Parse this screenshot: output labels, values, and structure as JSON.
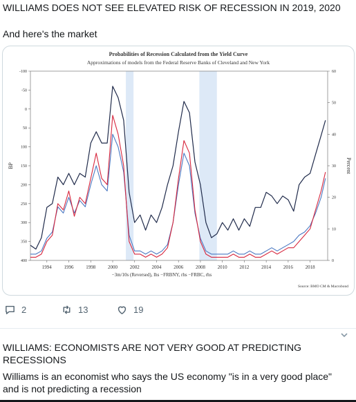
{
  "tweet1": {
    "headline": "WILLIAMS DOES NOT SEE ELEVATED RISK OF RECESSION IN 2019, 2020",
    "text": "And here's the market",
    "actions": {
      "replies": "2",
      "retweets": "13",
      "likes": "19"
    }
  },
  "tweet2": {
    "headline": "WILLIAMS: ECONOMISTS ARE NOT VERY GOOD AT PREDICTING RECESSIONS",
    "text": "Williams is an economist who says the US economy \"is in a very good place\" and is not predicting a recession"
  },
  "icons": {
    "reply": "reply-icon",
    "retweet": "retweet-icon",
    "like": "heart-icon",
    "more": "chevron-down-icon"
  },
  "colors": {
    "navy": "#1f2a4a",
    "red": "#d7263d",
    "blue": "#4a78c2",
    "recession": "#dde9f7"
  },
  "chart_data": {
    "type": "line",
    "title": "Probabilities of Recession Calculated from the Yield Curve",
    "subtitle": "Approximations of models from the Federal Reserve Banks of Cleveland and New York",
    "ylabel": "BP",
    "y2label": "Percent",
    "legend": "−3m/10s (Reversed), lhs −FRBNY, rhs −FRBC, rhs",
    "source": "Source: BMO CM & Macrobond",
    "ylim": [
      400,
      -100
    ],
    "y2lim": [
      0,
      60
    ],
    "yticks": [
      "-100",
      "-50",
      "0",
      "50",
      "100",
      "150",
      "200",
      "250",
      "300",
      "350",
      "400"
    ],
    "y2ticks": [
      "0",
      "10",
      "20",
      "30",
      "40",
      "50",
      "60"
    ],
    "xlim": [
      1992.5,
      2019.6
    ],
    "xticks": [
      "1994",
      "1996",
      "1998",
      "2000",
      "2002",
      "2004",
      "2006",
      "2008",
      "2010",
      "2012",
      "2014",
      "2016",
      "2018"
    ],
    "recessions": [
      [
        2001.2,
        2001.9
      ],
      [
        2007.9,
        2009.5
      ]
    ],
    "series": [
      {
        "name": "3m/10s (Reversed)",
        "axis": "left",
        "color": "#1f2a4a",
        "x": [
          1992.5,
          1993,
          1993.5,
          1994,
          1994.5,
          1995,
          1995.5,
          1996,
          1996.5,
          1997,
          1997.5,
          1998,
          1998.5,
          1999,
          1999.5,
          2000,
          2000.5,
          2001,
          2001.5,
          2002,
          2002.5,
          2003,
          2003.5,
          2004,
          2004.5,
          2005,
          2005.5,
          2006,
          2006.5,
          2007,
          2007.5,
          2008,
          2008.5,
          2009,
          2009.5,
          2010,
          2010.5,
          2011,
          2011.5,
          2012,
          2012.5,
          2013,
          2013.5,
          2014,
          2014.5,
          2015,
          2015.5,
          2016,
          2016.5,
          2017,
          2017.5,
          2018,
          2018.5,
          2019,
          2019.4
        ],
        "y": [
          360,
          370,
          340,
          260,
          250,
          180,
          200,
          170,
          200,
          170,
          180,
          90,
          60,
          90,
          90,
          -60,
          -30,
          30,
          220,
          300,
          280,
          320,
          280,
          300,
          260,
          200,
          150,
          60,
          -20,
          10,
          140,
          200,
          300,
          340,
          330,
          300,
          320,
          290,
          320,
          290,
          310,
          260,
          260,
          220,
          230,
          250,
          230,
          240,
          270,
          200,
          180,
          170,
          120,
          70,
          30
        ]
      },
      {
        "name": "FRBNY",
        "axis": "right",
        "color": "#d7263d",
        "x": [
          1992.5,
          1993,
          1993.5,
          1994,
          1994.5,
          1995,
          1995.5,
          1996,
          1996.5,
          1997,
          1997.5,
          1998,
          1998.5,
          1999,
          1999.5,
          2000,
          2000.5,
          2001,
          2001.5,
          2002,
          2002.5,
          2003,
          2003.5,
          2004,
          2004.5,
          2005,
          2005.5,
          2006,
          2006.5,
          2007,
          2007.5,
          2008,
          2008.5,
          2009,
          2009.5,
          2010,
          2010.5,
          2011,
          2011.5,
          2012,
          2012.5,
          2013,
          2013.5,
          2014,
          2014.5,
          2015,
          2015.5,
          2016,
          2016.5,
          2017,
          2017.5,
          2018,
          2018.5,
          2019,
          2019.4
        ],
        "y": [
          1,
          1,
          2,
          6,
          8,
          18,
          16,
          22,
          14,
          20,
          18,
          26,
          34,
          26,
          24,
          46,
          40,
          30,
          6,
          2,
          2,
          1,
          2,
          1,
          2,
          4,
          12,
          26,
          38,
          34,
          16,
          6,
          2,
          1,
          1,
          1,
          1,
          2,
          1,
          1,
          2,
          1,
          1,
          2,
          3,
          2,
          3,
          4,
          4,
          6,
          8,
          10,
          16,
          22,
          28
        ]
      },
      {
        "name": "FRBC",
        "axis": "right",
        "color": "#4a78c2",
        "x": [
          1992.5,
          1993,
          1993.5,
          1994,
          1994.5,
          1995,
          1995.5,
          1996,
          1996.5,
          1997,
          1997.5,
          1998,
          1998.5,
          1999,
          1999.5,
          2000,
          2000.5,
          2001,
          2001.5,
          2002,
          2002.5,
          2003,
          2003.5,
          2004,
          2004.5,
          2005,
          2005.5,
          2006,
          2006.5,
          2007,
          2007.5,
          2008,
          2008.5,
          2009,
          2009.5,
          2010,
          2010.5,
          2011,
          2011.5,
          2012,
          2012.5,
          2013,
          2013.5,
          2014,
          2014.5,
          2015,
          2015.5,
          2016,
          2016.5,
          2017,
          2017.5,
          2018,
          2018.5,
          2019,
          2019.4
        ],
        "y": [
          2,
          2,
          3,
          7,
          9,
          17,
          15,
          20,
          15,
          19,
          17,
          24,
          30,
          24,
          22,
          40,
          36,
          28,
          8,
          3,
          3,
          2,
          3,
          2,
          3,
          5,
          12,
          24,
          34,
          30,
          15,
          7,
          3,
          2,
          2,
          2,
          2,
          3,
          2,
          2,
          3,
          2,
          2,
          3,
          4,
          3,
          4,
          5,
          6,
          8,
          9,
          11,
          15,
          20,
          26
        ]
      }
    ]
  }
}
